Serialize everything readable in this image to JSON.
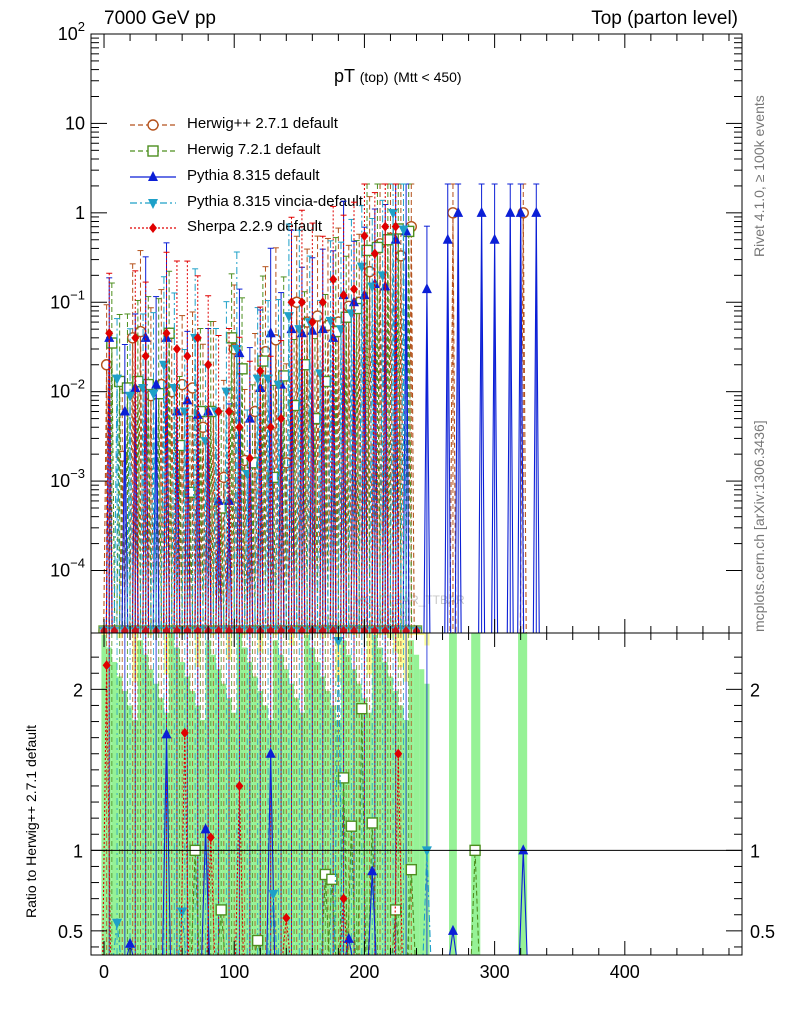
{
  "header": {
    "left": "7000 GeV pp",
    "right": "Top (parton level)"
  },
  "side_labels": {
    "rivet": "Rivet 4.1.0, ≥ 100k events",
    "mcplots": "mcplots.cern.ch [arXiv:1306.3436]"
  },
  "watermark": "MC_TTBAR_TTBAR",
  "plot_title": {
    "main": "pT",
    "sub1": "(top)",
    "sub2": "(Mtt < 450)"
  },
  "colors": {
    "herwigpp": "#b5521c",
    "herwig7": "#4d8f1f",
    "pythia": "#0b1fd6",
    "vincia": "#1ea0c8",
    "sherpa": "#e00000",
    "band_green": "#96f296",
    "band_yellow": "#fdfd9a"
  },
  "chart_data": [
    {
      "type": "line",
      "title": "pT (top) (Mtt < 450)",
      "xlabel": "",
      "ylabel": "",
      "yscale": "log",
      "xlim": [
        -10,
        490
      ],
      "ylim": [
        2e-05,
        100
      ],
      "ytick_labels": [
        "10^2",
        "10",
        "1",
        "10^−1",
        "10^−2",
        "10^−3",
        "10^−4"
      ],
      "legend": [
        "Herwig++ 2.7.1 default",
        "Herwig 7.2.1 default",
        "Pythia 8.315 default",
        "Pythia 8.315 vincia-default",
        "Sherpa 2.2.9 default"
      ],
      "legend_position": "top-left",
      "series": [
        {
          "name": "Herwig++ 2.7.1 default",
          "style": "dashed",
          "marker": "open-circle",
          "x": [
            2,
            14,
            22,
            28,
            36,
            44,
            52,
            60,
            68,
            76,
            84,
            92,
            100,
            108,
            116,
            124,
            132,
            140,
            148,
            156,
            164,
            172,
            180,
            188,
            196,
            204,
            212,
            220,
            228,
            236,
            268,
            322
          ],
          "y": [
            0.02,
            0.0019,
            0.04,
            0.047,
            0.009,
            0.012,
            0.01,
            0.012,
            0.011,
            0.004,
            0.006,
            0.0011,
            0.03,
            0.0017,
            0.006,
            0.028,
            0.038,
            0.0016,
            0.1,
            0.06,
            0.07,
            0.055,
            0.06,
            0.09,
            0.1,
            0.22,
            0.45,
            0.52,
            0.33,
            0.7,
            1.0,
            1.0
          ]
        },
        {
          "name": "Herwig 7.2.1 default",
          "style": "dashed",
          "marker": "open-square",
          "x": [
            6,
            12,
            18,
            26,
            34,
            42,
            50,
            58,
            66,
            74,
            82,
            90,
            98,
            106,
            114,
            122,
            130,
            138,
            146,
            154,
            162,
            170,
            178,
            186,
            194,
            202,
            210,
            218,
            226,
            234
          ],
          "y": [
            0.035,
            0.013,
            0.011,
            0.013,
            0.012,
            0.0095,
            0.045,
            0.0025,
            0.00075,
            0.006,
            0.006,
            0.0005,
            0.04,
            0.018,
            0.0016,
            0.022,
            0.0011,
            0.015,
            0.007,
            0.02,
            0.005,
            0.013,
            0.047,
            0.068,
            0.085,
            0.38,
            0.41,
            0.5,
            0.66,
            0.62
          ]
        },
        {
          "name": "Pythia 8.315 default",
          "style": "solid",
          "marker": "filled-triangle-up",
          "x": [
            4,
            16,
            24,
            32,
            40,
            48,
            56,
            64,
            72,
            80,
            88,
            96,
            104,
            112,
            120,
            128,
            136,
            144,
            152,
            160,
            168,
            176,
            184,
            192,
            200,
            208,
            216,
            224,
            232,
            248,
            264,
            272,
            290,
            300,
            312,
            320,
            332
          ],
          "y": [
            0.04,
            0.006,
            0.011,
            0.04,
            0.012,
            0.04,
            0.006,
            0.008,
            0.0055,
            0.006,
            0.0006,
            0.0006,
            0.027,
            0.005,
            0.011,
            0.045,
            0.012,
            0.05,
            0.045,
            0.048,
            0.05,
            0.04,
            0.12,
            0.1,
            0.12,
            0.16,
            0.15,
            0.5,
            0.62,
            0.14,
            0.5,
            1.0,
            1.0,
            0.5,
            1.0,
            1.0,
            1.0
          ]
        },
        {
          "name": "Pythia 8.315 vincia-default",
          "style": "dashdot",
          "marker": "filled-triangle-down",
          "x": [
            10,
            20,
            30,
            38,
            46,
            54,
            62,
            70,
            78,
            86,
            94,
            102,
            110,
            118,
            126,
            134,
            142,
            150,
            158,
            166,
            174,
            182,
            190,
            198,
            206,
            214,
            222,
            230
          ],
          "y": [
            0.014,
            0.009,
            0.011,
            0.0095,
            0.02,
            0.011,
            0.006,
            0.04,
            0.0028,
            0.006,
            0.01,
            0.03,
            0.0012,
            0.014,
            0.014,
            0.012,
            0.07,
            0.05,
            0.06,
            0.016,
            0.062,
            0.05,
            0.075,
            0.25,
            0.15,
            0.2,
            1.0,
            0.65
          ]
        },
        {
          "name": "Sherpa 2.2.9 default",
          "style": "dotted",
          "marker": "filled-diamond",
          "x": [
            4,
            24,
            32,
            48,
            56,
            64,
            72,
            80,
            88,
            96,
            104,
            112,
            120,
            128,
            136,
            144,
            152,
            160,
            168,
            176,
            184,
            192,
            200,
            208,
            216,
            224
          ],
          "y": [
            0.045,
            0.04,
            0.025,
            0.045,
            0.03,
            0.025,
            0.04,
            0.02,
            0.006,
            0.006,
            0.004,
            0.0018,
            0.017,
            0.004,
            0.005,
            0.1,
            0.1,
            0.06,
            0.1,
            0.18,
            0.12,
            0.14,
            0.55,
            0.35,
            0.7,
            0.7
          ]
        }
      ]
    },
    {
      "type": "line",
      "title": "",
      "xlabel": "",
      "ylabel": "Ratio to Herwig++ 2.7.1 default",
      "xlim": [
        -10,
        490
      ],
      "ylim": [
        0.35,
        2.35
      ],
      "xtick_labels": [
        "0",
        "100",
        "200",
        "300",
        "400"
      ],
      "ytick_labels": [
        "0.5",
        "1",
        "2"
      ],
      "reference_line": 1,
      "series": [
        {
          "name": "Herwig 7.2.1 default",
          "marker": "open-square",
          "x": [
            70,
            90,
            118,
            170,
            175,
            184,
            190,
            198,
            206,
            224,
            236,
            285
          ],
          "y": [
            1.0,
            0.63,
            0.44,
            0.85,
            0.82,
            1.45,
            1.15,
            1.88,
            1.17,
            0.63,
            0.88,
            1.0
          ]
        },
        {
          "name": "Pythia 8.315 default",
          "marker": "filled-triangle-up",
          "x": [
            20,
            48,
            78,
            128,
            188,
            206,
            268,
            322
          ],
          "y": [
            0.42,
            1.72,
            1.13,
            1.6,
            0.45,
            0.87,
            0.5,
            1.0
          ]
        },
        {
          "name": "Pythia 8.315 vincia-default",
          "marker": "filled-triangle-down",
          "x": [
            10,
            60,
            130,
            180,
            248
          ],
          "y": [
            0.55,
            0.62,
            0.73,
            2.3,
            1.0
          ]
        },
        {
          "name": "Sherpa 2.2.9 default",
          "marker": "filled-diamond",
          "x": [
            2,
            62,
            82,
            104,
            140,
            184,
            226
          ],
          "y": [
            2.15,
            1.73,
            1.08,
            1.4,
            0.58,
            0.7,
            1.6
          ]
        }
      ]
    }
  ]
}
